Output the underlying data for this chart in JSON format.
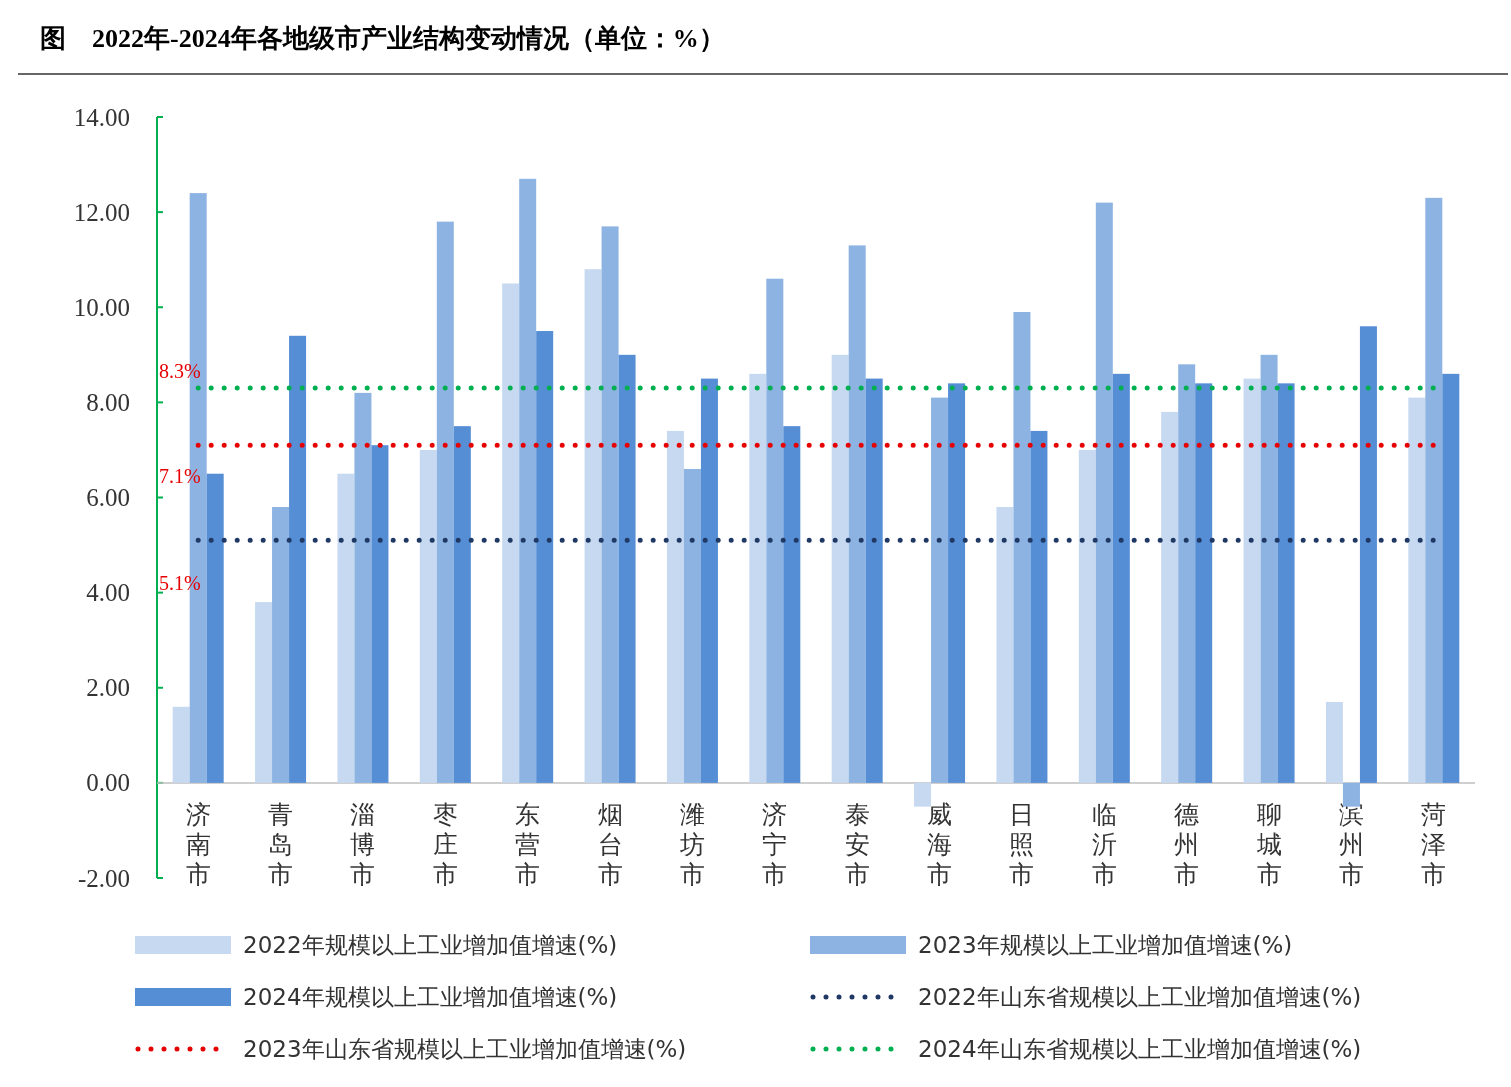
{
  "chart_data": {
    "type": "bar",
    "title": "图　2022年-2024年各地级市产业结构变动情况（单位：%）",
    "categories": [
      "济南市",
      "青岛市",
      "淄博市",
      "枣庄市",
      "东营市",
      "烟台市",
      "潍坊市",
      "济宁市",
      "泰安市",
      "威海市",
      "日照市",
      "临沂市",
      "德州市",
      "聊城市",
      "滨州市",
      "菏泽市"
    ],
    "ylim": [
      -2,
      14
    ],
    "yticks": [
      {
        "value": -2,
        "label": "-2.00"
      },
      {
        "value": 0,
        "label": "0.00"
      },
      {
        "value": 2,
        "label": "2.00"
      },
      {
        "value": 4,
        "label": "4.00"
      },
      {
        "value": 6,
        "label": "6.00"
      },
      {
        "value": 8,
        "label": "8.00"
      },
      {
        "value": 10,
        "label": "10.00"
      },
      {
        "value": 12,
        "label": "12.00"
      },
      {
        "value": 14,
        "label": "14.00"
      }
    ],
    "grid": false,
    "legend": "bottom",
    "series": [
      {
        "name": "2022年规模以上工业增加值增速(%)",
        "color": "#c6d9f1",
        "values": [
          1.6,
          3.8,
          6.5,
          7.0,
          10.5,
          10.8,
          7.4,
          8.6,
          9.0,
          -0.5,
          5.8,
          7.0,
          7.8,
          8.5,
          1.7,
          8.1
        ]
      },
      {
        "name": "2023年规模以上工业增加值增速(%)",
        "color": "#8db3e2",
        "values": [
          12.4,
          5.8,
          8.2,
          11.8,
          12.7,
          11.7,
          6.6,
          10.6,
          11.3,
          8.1,
          9.9,
          12.2,
          8.8,
          9.0,
          -0.5,
          12.3
        ]
      },
      {
        "name": "2024年规模以上工业增加值增速(%)",
        "color": "#558ed5",
        "values": [
          6.5,
          9.4,
          7.1,
          7.5,
          9.5,
          9.0,
          8.5,
          7.5,
          8.5,
          8.4,
          7.4,
          8.6,
          8.4,
          8.4,
          9.6,
          8.6
        ]
      },
      {
        "name": "2022年山东省规模以上工业增加值增速(%)",
        "type": "line",
        "line_style": "dotted",
        "color": "#1f3864",
        "values": [
          5.1,
          5.1,
          5.1,
          5.1,
          5.1,
          5.1,
          5.1,
          5.1,
          5.1,
          5.1,
          5.1,
          5.1,
          5.1,
          5.1,
          5.1,
          5.1
        ],
        "value_labels": [
          "5.1%",
          null,
          null,
          null,
          null,
          null,
          null,
          null,
          null,
          null,
          null,
          null,
          null,
          null,
          null,
          null
        ]
      },
      {
        "name": "2023年山东省规模以上工业增加值增速(%)",
        "type": "line",
        "line_style": "dotted",
        "color": "#e60000",
        "values": [
          7.1,
          7.1,
          7.1,
          7.1,
          7.1,
          7.1,
          7.1,
          7.1,
          7.1,
          7.1,
          7.1,
          7.1,
          7.1,
          7.1,
          7.1,
          7.1
        ],
        "value_labels": [
          "7.1%",
          null,
          null,
          null,
          null,
          null,
          null,
          null,
          null,
          null,
          null,
          null,
          null,
          null,
          null,
          null
        ]
      },
      {
        "name": "2024年山东省规模以上工业增加值增速(%)",
        "type": "line",
        "line_style": "dotted",
        "color": "#00b050",
        "values": [
          8.3,
          8.3,
          8.3,
          8.3,
          8.3,
          8.3,
          8.3,
          8.3,
          8.3,
          8.3,
          8.3,
          8.3,
          8.3,
          8.3,
          8.3,
          8.3
        ],
        "value_labels": [
          "8.3%",
          null,
          null,
          null,
          null,
          null,
          null,
          null,
          null,
          null,
          null,
          null,
          null,
          null,
          null,
          null
        ]
      }
    ]
  }
}
